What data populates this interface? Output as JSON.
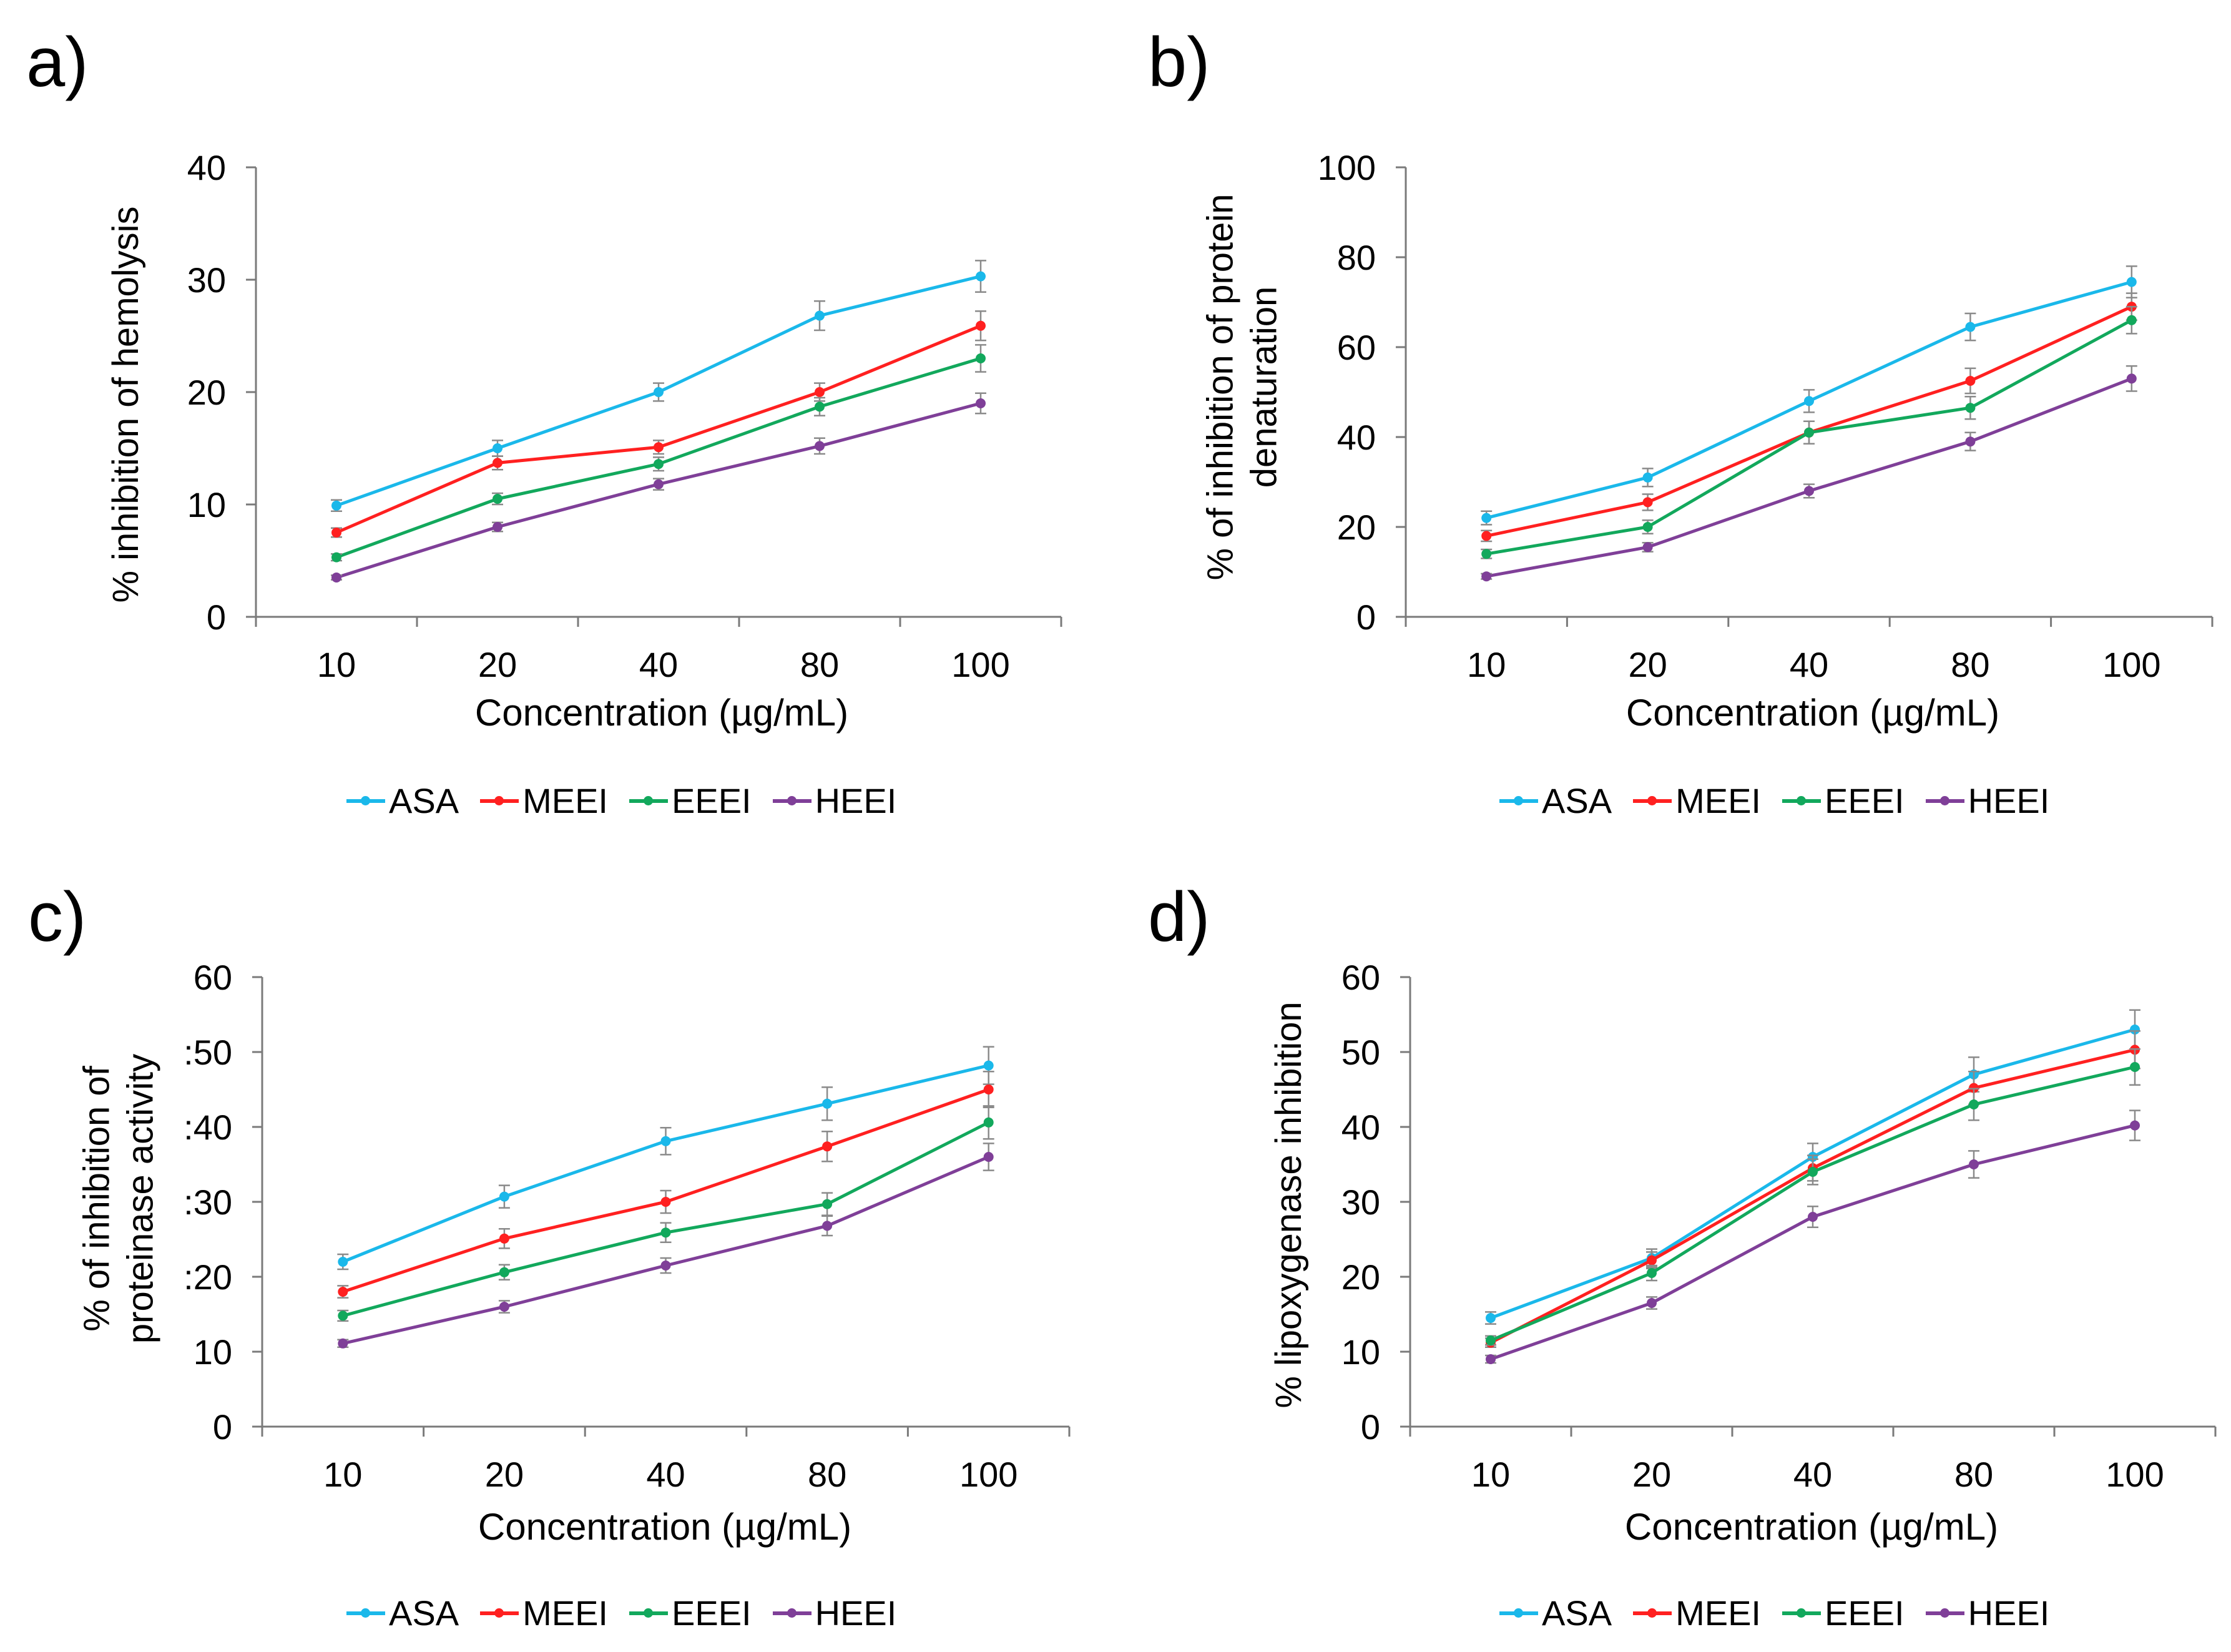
{
  "chart_data": [
    {
      "type": "line",
      "panel_label": "a)",
      "categories": [
        "10",
        "20",
        "40",
        "80",
        "100"
      ],
      "xlabel": "Concentration (µg/mL)",
      "ylabel_lines": [
        "% inhibition of hemolysis"
      ],
      "ylim": [
        0,
        40
      ],
      "yticks": [
        0,
        10,
        20,
        30,
        40
      ],
      "ytick_labels": [
        "0",
        "10",
        "20",
        "30",
        "40"
      ],
      "series": [
        {
          "name": "ASA",
          "color": "#1ab8ea",
          "values": [
            9.9,
            15.0,
            20.0,
            26.8,
            30.3
          ],
          "errors": [
            0.5,
            0.7,
            0.8,
            1.3,
            1.4
          ]
        },
        {
          "name": "MEEI",
          "color": "#ff2020",
          "values": [
            7.5,
            13.7,
            15.1,
            20.0,
            25.9
          ],
          "errors": [
            0.4,
            0.6,
            0.6,
            0.8,
            1.3
          ]
        },
        {
          "name": "EEEI",
          "color": "#12a85c",
          "values": [
            5.3,
            10.5,
            13.6,
            18.7,
            23.0
          ],
          "errors": [
            0.3,
            0.5,
            0.6,
            0.8,
            1.2
          ]
        },
        {
          "name": "HEEI",
          "color": "#7f3f98",
          "values": [
            3.5,
            8.0,
            11.8,
            15.2,
            19.0
          ],
          "errors": [
            0.2,
            0.4,
            0.5,
            0.7,
            0.9
          ]
        }
      ]
    },
    {
      "type": "line",
      "panel_label": "b)",
      "categories": [
        "10",
        "20",
        "40",
        "80",
        "100"
      ],
      "xlabel": "Concentration (µg/mL)",
      "ylabel_lines": [
        "% of inhibition of protein",
        "denaturation"
      ],
      "ylim": [
        0,
        100
      ],
      "yticks": [
        0,
        20,
        40,
        60,
        80,
        100
      ],
      "ytick_labels": [
        "0",
        "20",
        "40",
        "60",
        "80",
        "100"
      ],
      "series": [
        {
          "name": "ASA",
          "color": "#1ab8ea",
          "values": [
            22,
            31,
            48,
            64.5,
            74.5
          ],
          "errors": [
            1.5,
            2.0,
            2.5,
            3.0,
            3.5
          ]
        },
        {
          "name": "MEEI",
          "color": "#ff2020",
          "values": [
            18,
            25.5,
            41,
            52.5,
            69
          ],
          "errors": [
            1.2,
            1.8,
            2.5,
            2.8,
            3.0
          ]
        },
        {
          "name": "EEEI",
          "color": "#12a85c",
          "values": [
            14,
            20,
            41,
            46.5,
            66
          ],
          "errors": [
            1.0,
            1.5,
            2.5,
            2.5,
            3.0
          ]
        },
        {
          "name": "HEEI",
          "color": "#7f3f98",
          "values": [
            9,
            15.5,
            28,
            39,
            53
          ],
          "errors": [
            0.6,
            1.0,
            1.5,
            2.0,
            2.8
          ]
        }
      ]
    },
    {
      "type": "line",
      "panel_label": "c)",
      "categories": [
        "10",
        "20",
        "40",
        "80",
        "100"
      ],
      "xlabel": "Concentration (µg/mL)",
      "ylabel_lines": [
        "% of inhibition of",
        "proteinase activity"
      ],
      "ylim": [
        0,
        60
      ],
      "yticks": [
        0,
        10,
        20,
        30,
        40,
        50,
        60
      ],
      "ytick_labels": [
        "0",
        "10",
        ":20",
        ":30",
        ":40",
        ":50",
        "60"
      ],
      "series": [
        {
          "name": "ASA",
          "color": "#1ab8ea",
          "values": [
            22,
            30.7,
            38.1,
            43.1,
            48.2
          ],
          "errors": [
            1.0,
            1.5,
            1.8,
            2.2,
            2.5
          ]
        },
        {
          "name": "MEEI",
          "color": "#ff2020",
          "values": [
            18,
            25.1,
            30,
            37.4,
            45
          ],
          "errors": [
            0.8,
            1.3,
            1.5,
            2.0,
            2.4
          ]
        },
        {
          "name": "EEEI",
          "color": "#12a85c",
          "values": [
            14.8,
            20.6,
            25.9,
            29.7,
            40.6
          ],
          "errors": [
            0.7,
            1.0,
            1.3,
            1.5,
            2.2
          ]
        },
        {
          "name": "HEEI",
          "color": "#7f3f98",
          "values": [
            11.1,
            16,
            21.5,
            26.8,
            36
          ],
          "errors": [
            0.5,
            0.8,
            1.0,
            1.3,
            1.8
          ]
        }
      ]
    },
    {
      "type": "line",
      "panel_label": "d)",
      "categories": [
        "10",
        "20",
        "40",
        "80",
        "100"
      ],
      "xlabel": "Concentration (µg/mL)",
      "ylabel_lines": [
        "% lipoxygenase inhibition"
      ],
      "ylim": [
        0,
        60
      ],
      "yticks": [
        0,
        10,
        20,
        30,
        40,
        50,
        60
      ],
      "ytick_labels": [
        "0",
        "10",
        "20",
        "30",
        "40",
        "50",
        "60"
      ],
      "series": [
        {
          "name": "ASA",
          "color": "#1ab8ea",
          "values": [
            14.5,
            22.5,
            36,
            47,
            53
          ],
          "errors": [
            0.8,
            1.2,
            1.8,
            2.3,
            2.6
          ]
        },
        {
          "name": "MEEI",
          "color": "#ff2020",
          "values": [
            11.2,
            22.2,
            34.5,
            45.2,
            50.3
          ],
          "errors": [
            0.6,
            1.1,
            1.7,
            2.2,
            2.5
          ]
        },
        {
          "name": "EEEI",
          "color": "#12a85c",
          "values": [
            11.5,
            20.5,
            34,
            43,
            48
          ],
          "errors": [
            0.6,
            1.0,
            1.7,
            2.1,
            2.4
          ]
        },
        {
          "name": "HEEI",
          "color": "#7f3f98",
          "values": [
            9,
            16.5,
            28,
            35,
            40.2
          ],
          "errors": [
            0.5,
            0.8,
            1.4,
            1.8,
            2.0
          ]
        }
      ]
    }
  ]
}
